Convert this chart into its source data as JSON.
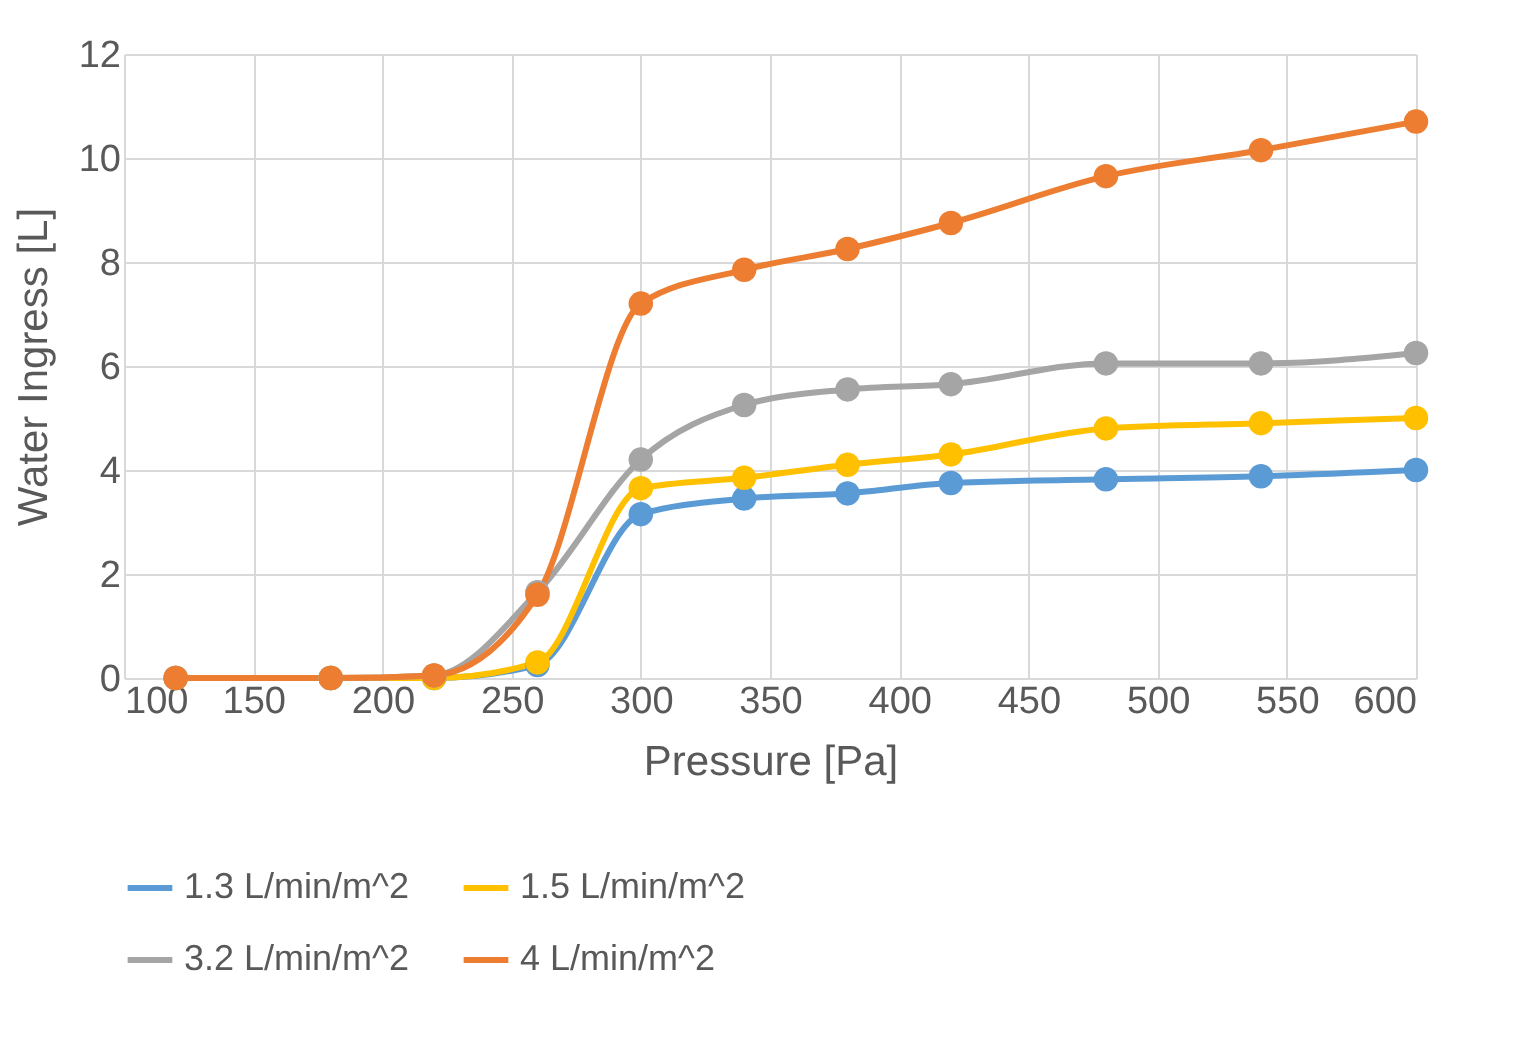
{
  "chart_data": {
    "type": "line",
    "xlabel": "Pressure [Pa]",
    "ylabel": "Water Ingress [L]",
    "x": [
      120,
      180,
      220,
      260,
      300,
      340,
      380,
      420,
      480,
      540,
      600
    ],
    "series": [
      {
        "name": "1.3 L/min/m^2",
        "color": "#5b9bd5",
        "values": [
          0,
          0,
          0,
          0.25,
          3.15,
          3.45,
          3.55,
          3.75,
          3.82,
          3.88,
          4.0
        ]
      },
      {
        "name": "1.5 L/min/m^2",
        "color": "#ffc000",
        "values": [
          0,
          0,
          0,
          0.3,
          3.65,
          3.85,
          4.1,
          4.3,
          4.8,
          4.9,
          5.0
        ]
      },
      {
        "name": "3.2 L/min/m^2",
        "color": "#a5a5a5",
        "values": [
          0,
          0,
          0.05,
          1.65,
          4.2,
          5.25,
          5.55,
          5.65,
          6.05,
          6.05,
          6.25
        ]
      },
      {
        "name": "4 L/min/m^2",
        "color": "#ed7d31",
        "values": [
          0,
          0,
          0.05,
          1.6,
          7.2,
          7.85,
          8.25,
          8.75,
          9.65,
          10.15,
          10.7
        ]
      }
    ],
    "xlim": [
      100,
      600
    ],
    "xticks": [
      100,
      150,
      200,
      250,
      300,
      350,
      400,
      450,
      500,
      550,
      600
    ],
    "ylim": [
      0,
      12
    ],
    "yticks": [
      0,
      2,
      4,
      6,
      8,
      10,
      12
    ],
    "grid": true,
    "legend": "bottom",
    "marker": "circle",
    "line_style": "solid"
  }
}
